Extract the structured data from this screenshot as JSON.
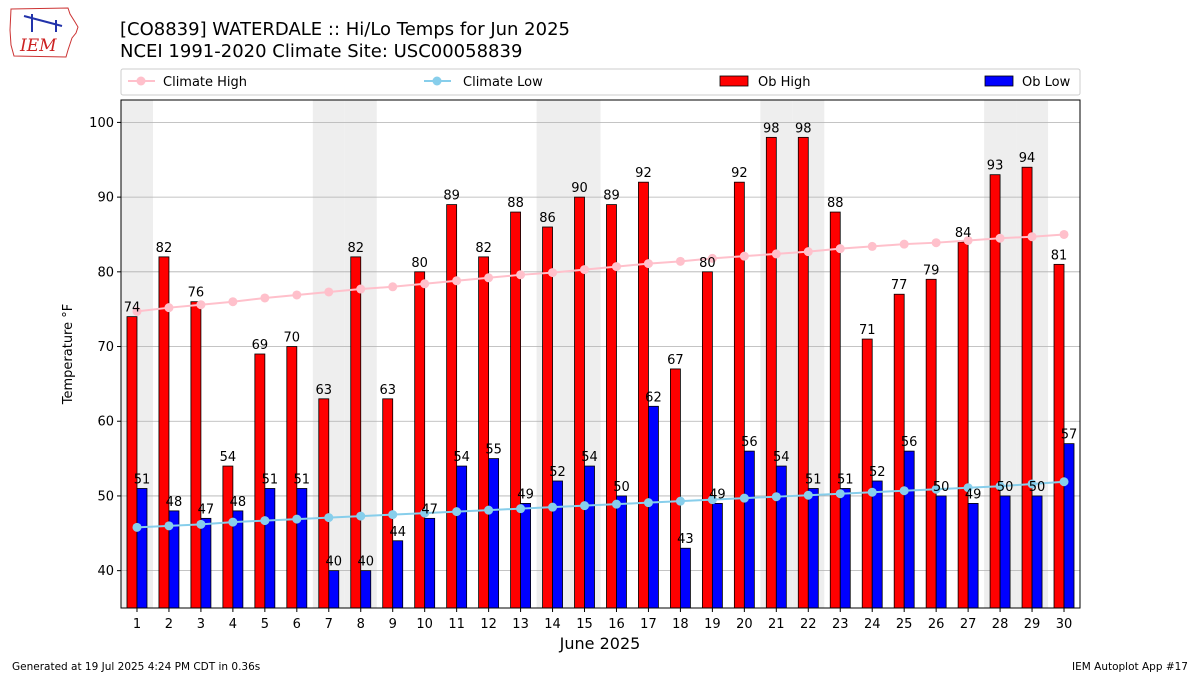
{
  "header": {
    "title": "[CO8839] WATERDALE :: Hi/Lo Temps for Jun 2025",
    "subtitle": "NCEI 1991-2020 Climate Site: USC00058839",
    "logo_text": "IEM"
  },
  "footer": {
    "generated": "Generated at 19 Jul 2025 4:24 PM CDT in 0.36s",
    "app": "IEM Autoplot App #17"
  },
  "colors": {
    "ob_high": "#ff0000",
    "ob_low": "#0000ff",
    "climate_high": "#ffc0cb",
    "climate_low": "#87ceeb",
    "weekend_band": "#eeeeee",
    "grid": "#b0b0b0"
  },
  "chart_data": {
    "type": "bar",
    "xlabel": "June 2025",
    "ylabel": "Temperature °F",
    "ylim": [
      35,
      103
    ],
    "yticks": [
      40,
      50,
      60,
      70,
      80,
      90,
      100
    ],
    "grid": "horizontal",
    "legend_placement": "top",
    "categories": [
      "1",
      "2",
      "3",
      "4",
      "5",
      "6",
      "7",
      "8",
      "9",
      "10",
      "11",
      "12",
      "13",
      "14",
      "15",
      "16",
      "17",
      "18",
      "19",
      "20",
      "21",
      "22",
      "23",
      "24",
      "25",
      "26",
      "27",
      "28",
      "29",
      "30"
    ],
    "weekend_days": [
      1,
      7,
      8,
      14,
      15,
      21,
      22,
      28,
      29
    ],
    "series": [
      {
        "name": "Ob High",
        "kind": "bar",
        "values": [
          74,
          82,
          76,
          54,
          69,
          70,
          63,
          82,
          63,
          80,
          89,
          82,
          88,
          86,
          90,
          89,
          92,
          67,
          80,
          92,
          98,
          98,
          88,
          71,
          77,
          79,
          84,
          93,
          94,
          81
        ]
      },
      {
        "name": "Ob Low",
        "kind": "bar",
        "values": [
          51,
          48,
          47,
          48,
          51,
          51,
          40,
          40,
          44,
          47,
          54,
          55,
          49,
          52,
          54,
          50,
          62,
          43,
          49,
          56,
          54,
          51,
          51,
          52,
          56,
          50,
          49,
          50,
          50,
          57
        ]
      },
      {
        "name": "Climate High",
        "kind": "line",
        "values": [
          74.7,
          75.2,
          75.6,
          76.0,
          76.5,
          76.9,
          77.3,
          77.7,
          78.0,
          78.4,
          78.8,
          79.2,
          79.6,
          79.9,
          80.3,
          80.7,
          81.1,
          81.4,
          81.8,
          82.1,
          82.4,
          82.7,
          83.1,
          83.4,
          83.7,
          83.9,
          84.2,
          84.5,
          84.7,
          85.0
        ]
      },
      {
        "name": "Climate Low",
        "kind": "line",
        "values": [
          45.8,
          46.0,
          46.2,
          46.5,
          46.7,
          46.9,
          47.1,
          47.3,
          47.5,
          47.7,
          47.9,
          48.1,
          48.3,
          48.5,
          48.7,
          48.9,
          49.1,
          49.3,
          49.5,
          49.7,
          49.9,
          50.1,
          50.3,
          50.5,
          50.7,
          50.9,
          51.1,
          51.3,
          51.6,
          51.9
        ]
      }
    ]
  }
}
